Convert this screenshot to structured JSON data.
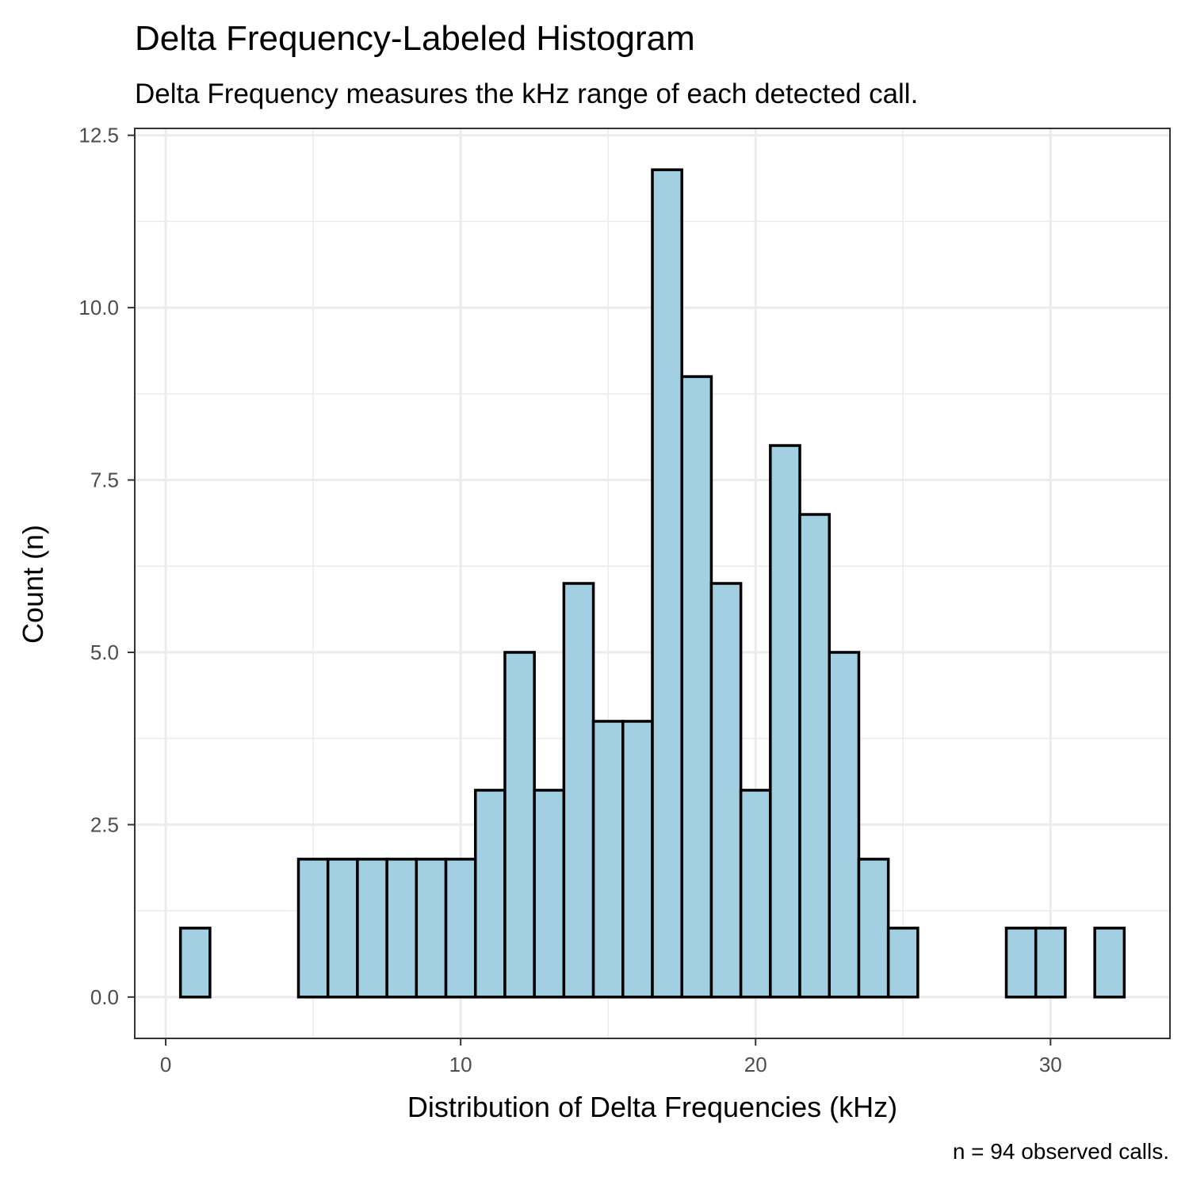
{
  "chart_data": {
    "type": "bar",
    "title": "Delta Frequency-Labeled Histogram",
    "subtitle": "Delta Frequency measures the kHz range of each detected call.",
    "xlabel": "Distribution of Delta Frequencies (kHz)",
    "ylabel": "Count (n)",
    "caption": "n = 94 observed calls.",
    "bin_width": 1,
    "bin_centers": [
      1,
      2,
      3,
      4,
      5,
      6,
      7,
      8,
      9,
      10,
      11,
      12,
      13,
      14,
      15,
      16,
      17,
      18,
      19,
      20,
      21,
      22,
      23,
      24,
      25,
      26,
      27,
      28,
      29,
      30,
      31,
      32
    ],
    "values": [
      1,
      0,
      0,
      0,
      2,
      2,
      2,
      2,
      2,
      2,
      3,
      5,
      3,
      6,
      4,
      4,
      12,
      9,
      6,
      3,
      8,
      7,
      5,
      2,
      1,
      0,
      0,
      0,
      1,
      1,
      0,
      1
    ],
    "xlim": [
      -1.05,
      34.05
    ],
    "ylim": [
      -0.6,
      12.6
    ],
    "x_ticks": [
      0,
      10,
      20,
      30
    ],
    "x_tick_labels": [
      "0",
      "10",
      "20",
      "30"
    ],
    "y_ticks": [
      0,
      2.5,
      5,
      7.5,
      10,
      12.5
    ],
    "y_tick_labels": [
      "0.0",
      "2.5",
      "5.0",
      "7.5",
      "10.0",
      "12.5"
    ],
    "grid": true,
    "bar_fill": "#a2d0e2",
    "bar_stroke": "#000000",
    "grid_color": "#ebebeb",
    "panel_border_color": "#333333"
  }
}
